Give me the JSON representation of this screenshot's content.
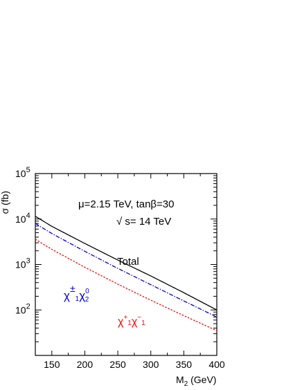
{
  "chart_data": {
    "type": "line",
    "title": "",
    "xlabel": "M",
    "xlabel_sub": "2",
    "xlabel_unit": " (GeV)",
    "ylabel": "σ (fb)",
    "xlim": [
      125,
      400
    ],
    "ylim": [
      10,
      100000
    ],
    "yscale": "log",
    "grid": false,
    "x_ticks": [
      150,
      200,
      250,
      300,
      350,
      400
    ],
    "y_ticks": [
      {
        "base": "10",
        "exp": "2",
        "value": 100
      },
      {
        "base": "10",
        "exp": "3",
        "value": 1000
      },
      {
        "base": "10",
        "exp": "4",
        "value": 10000
      },
      {
        "base": "10",
        "exp": "5",
        "value": 100000
      }
    ],
    "annotations": {
      "params": "μ=2.15 TeV, tanβ=30",
      "energy": "√ s= 14 TeV"
    },
    "series": [
      {
        "name": "Total",
        "color": "#000000",
        "dash": "solid",
        "x": [
          125,
          150,
          200,
          250,
          300,
          350,
          400
        ],
        "values": [
          11500,
          6900,
          2900,
          1250,
          560,
          240,
          100
        ]
      },
      {
        "name": "χ±1χ02",
        "color": "#0000cc",
        "dash": "dashdot",
        "x": [
          125,
          150,
          200,
          250,
          300,
          350,
          400
        ],
        "values": [
          8000,
          4800,
          1950,
          820,
          360,
          158,
          70
        ]
      },
      {
        "name": "χ+1χ−1",
        "color": "#ff0000",
        "dash": "dotted",
        "x": [
          125,
          150,
          200,
          250,
          300,
          350,
          400
        ],
        "values": [
          3600,
          2150,
          870,
          370,
          164,
          75,
          35
        ]
      }
    ],
    "series_labels": {
      "total": "Total",
      "chi_pm_chi0": {
        "chi": "χ",
        "sup1": "±",
        "sub1": "1",
        "chi2": "χ",
        "sup2": "0",
        "sub2": "2"
      },
      "chi_plus_minus": {
        "chi": "χ",
        "sup1": "+",
        "sub1": "1",
        "chi2": "χ",
        "sup2": "−",
        "sub2": "1"
      }
    }
  }
}
